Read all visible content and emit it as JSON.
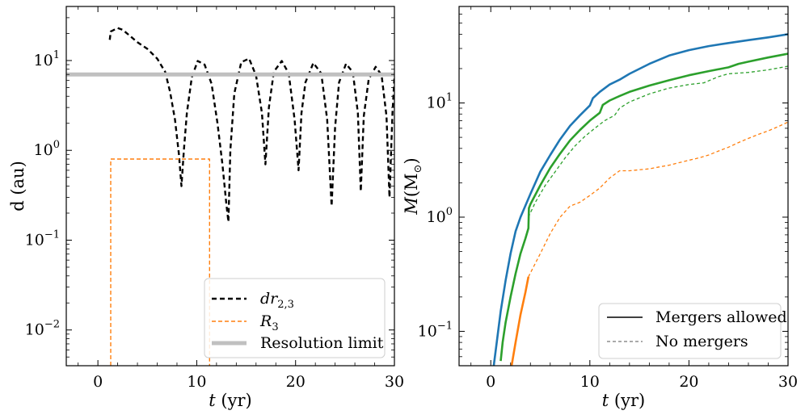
{
  "chart_data": [
    {
      "type": "line",
      "ylog": true,
      "xlim": [
        -3.2,
        30
      ],
      "ylim": [
        0.004,
        40
      ],
      "xticks": [
        0,
        10,
        20,
        30
      ],
      "xtick_labels": [
        "0",
        "10",
        "20",
        "30"
      ],
      "yticks": [
        0.01,
        0.1,
        1,
        10
      ],
      "ytick_labels": [
        "10",
        "10",
        "10",
        "10"
      ],
      "ytick_exponents": [
        "−2",
        "−1",
        "0",
        "1"
      ],
      "xlabel_italic": "t",
      "xlabel_rest": " (yr)",
      "ylabel": "d (au)",
      "legend_position": "bottom-right",
      "series": [
        {
          "name": "dr",
          "name_sub": "2,3",
          "name_italic": true,
          "color": "#000000",
          "dash": "6 4",
          "width": 2.4,
          "x": [
            1.2,
            1.3,
            2.0,
            2.5,
            3.2,
            4.0,
            5.0,
            6.0,
            6.8,
            7.3,
            7.8,
            8.2,
            8.45,
            8.7,
            9.0,
            9.5,
            10.1,
            10.8,
            11.5,
            12.1,
            12.6,
            13.0,
            13.2,
            13.4,
            13.8,
            14.5,
            15.3,
            16.0,
            16.6,
            16.95,
            17.3,
            17.8,
            18.6,
            19.3,
            19.9,
            20.3,
            20.6,
            21.0,
            21.8,
            22.6,
            23.2,
            23.65,
            24.0,
            24.4,
            25.1,
            25.8,
            26.3,
            26.6,
            26.9,
            27.4,
            28.1,
            28.7,
            29.2,
            29.5,
            29.8,
            30.0
          ],
          "y": [
            17,
            21,
            23,
            22,
            19,
            16,
            13.5,
            10.5,
            7.5,
            4.5,
            2.2,
            0.9,
            0.4,
            1.0,
            2.6,
            6.5,
            9.9,
            9.0,
            5.5,
            2.0,
            0.7,
            0.25,
            0.16,
            1.0,
            4.3,
            9.6,
            10.5,
            6.8,
            2.6,
            0.7,
            3.0,
            7.5,
            9.9,
            7.2,
            2.2,
            0.6,
            2.6,
            5.7,
            9.4,
            7.2,
            2.2,
            0.24,
            1.8,
            5.7,
            9.2,
            7.4,
            2.6,
            0.35,
            2.4,
            6.2,
            8.5,
            6.9,
            2.4,
            0.3,
            2.6,
            6.5
          ]
        },
        {
          "name": "R",
          "name_sub": "3",
          "name_italic": true,
          "color": "#ff7f0e",
          "dash": "5 3",
          "width": 1.4,
          "x": [
            1.3,
            1.3,
            11.3,
            11.3
          ],
          "y": [
            0.004,
            0.8,
            0.8,
            0.004
          ]
        },
        {
          "name": "Resolution limit",
          "name_italic": false,
          "color": "#c0c0c0",
          "dash": "",
          "width": 5,
          "x": [
            -3.2,
            30
          ],
          "y": [
            7,
            7
          ]
        }
      ]
    },
    {
      "type": "line",
      "ylog": true,
      "xlim": [
        -3.2,
        30
      ],
      "ylim": [
        0.05,
        70
      ],
      "xticks": [
        0,
        10,
        20,
        30
      ],
      "xtick_labels": [
        "0",
        "10",
        "20",
        "30"
      ],
      "yticks": [
        0.1,
        1,
        10
      ],
      "ytick_labels": [
        "10",
        "10",
        "10"
      ],
      "ytick_exponents": [
        "−1",
        "0",
        "1"
      ],
      "xlabel_italic": "t",
      "xlabel_rest": " (yr)",
      "ylabel_italic": "M",
      "ylabel_rest": "(M",
      "ylabel_sub": "⊙",
      "ylabel_end": ")",
      "legend_position": "bottom-right",
      "legend": [
        {
          "label": "Mergers allowed",
          "style": "solid"
        },
        {
          "label": "No mergers",
          "style": "dashed"
        }
      ],
      "series": [
        {
          "color": "#1f77b4",
          "dash": "",
          "width": 2.6,
          "x": [
            0.3,
            0.6,
            1.0,
            1.5,
            2.0,
            2.5,
            3.0,
            4.0,
            5.0,
            6.0,
            7.0,
            8.0,
            9.0,
            10.0,
            10.3,
            11.0,
            12.0,
            13.0,
            14.0,
            16.0,
            18.0,
            20.0,
            22.0,
            24.0,
            26.0,
            28.0,
            30.0
          ],
          "y": [
            0.05,
            0.08,
            0.15,
            0.28,
            0.48,
            0.75,
            1.0,
            1.6,
            2.5,
            3.5,
            4.8,
            6.3,
            7.8,
            9.5,
            11.0,
            12.5,
            14.5,
            16.0,
            18.0,
            22.0,
            26.0,
            29.0,
            31.5,
            33.5,
            35.5,
            37.5,
            40.0
          ]
        },
        {
          "color": "#2ca02c",
          "dash": "",
          "width": 2.6,
          "x": [
            1.0,
            1.2,
            1.5,
            2.0,
            2.5,
            3.0,
            3.5,
            3.8,
            3.85,
            4.0,
            5.0,
            6.0,
            7.0,
            8.0,
            9.0,
            10.0,
            11.0,
            11.3,
            12.0,
            13.0,
            14.0,
            16.0,
            18.0,
            20.0,
            22.0,
            24.0,
            25.0,
            26.0,
            28.0,
            30.0
          ],
          "y": [
            0.055,
            0.08,
            0.12,
            0.2,
            0.32,
            0.48,
            0.65,
            0.8,
            1.2,
            1.3,
            1.9,
            2.7,
            3.6,
            4.7,
            5.8,
            7.0,
            8.2,
            9.6,
            10.5,
            11.5,
            12.5,
            14.2,
            15.8,
            17.5,
            19.0,
            20.5,
            22.0,
            23.0,
            25.0,
            27.0
          ]
        },
        {
          "color": "#2ca02c",
          "dash": "4 3",
          "width": 1.3,
          "x": [
            3.8,
            4.5,
            5.5,
            6.5,
            7.5,
            8.5,
            9.5,
            10.5,
            11.5,
            12.5,
            13.0,
            14.0,
            16.0,
            18.0,
            20.0,
            21.5,
            23.0,
            24.0,
            26.0,
            28.0,
            30.0
          ],
          "y": [
            1.0,
            1.35,
            1.9,
            2.5,
            3.3,
            4.2,
            5.1,
            6.0,
            7.0,
            7.8,
            9.0,
            10.2,
            12.0,
            13.5,
            14.5,
            15.0,
            17.0,
            18.0,
            18.5,
            19.5,
            21.0
          ]
        },
        {
          "color": "#ff7f0e",
          "dash": "",
          "width": 2.6,
          "x": [
            2.1,
            2.5,
            3.0,
            3.5,
            3.8
          ],
          "y": [
            0.05,
            0.08,
            0.14,
            0.22,
            0.3
          ]
        },
        {
          "color": "#ff7f0e",
          "dash": "4 3",
          "width": 1.3,
          "x": [
            3.8,
            5.0,
            6.0,
            7.0,
            8.0,
            9.0,
            10.0,
            11.0,
            12.0,
            13.0,
            14.0,
            15.0,
            16.0,
            17.0,
            18.0,
            19.0,
            20.0,
            21.0,
            22.0,
            23.0,
            24.0,
            25.0,
            26.0,
            27.0,
            28.0,
            29.0,
            30.0
          ],
          "y": [
            0.3,
            0.48,
            0.72,
            1.0,
            1.25,
            1.35,
            1.55,
            1.8,
            2.2,
            2.55,
            2.55,
            2.6,
            2.65,
            2.75,
            2.85,
            3.0,
            3.15,
            3.3,
            3.5,
            3.8,
            4.1,
            4.5,
            4.9,
            5.3,
            5.7,
            6.2,
            6.8
          ]
        }
      ]
    }
  ]
}
